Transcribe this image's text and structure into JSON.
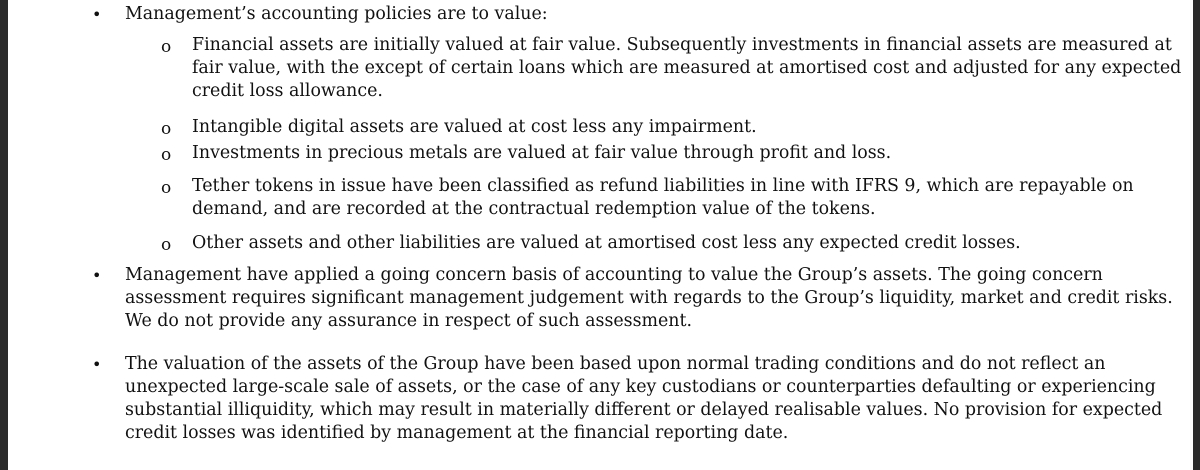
{
  "bullets": [
    {
      "marker": "•",
      "lines": [
        "Management’s accounting policies are to value:"
      ]
    },
    {
      "marker": "•",
      "lines": [
        "Management have applied a going concern basis of accounting to value the Group’s assets. The going concern",
        "assessment requires significant management judgement with regards to the Group’s liquidity, market and credit risks.",
        "We do not provide any assurance in respect of such assessment."
      ]
    },
    {
      "marker": "•",
      "lines": [
        "The valuation of the assets of the Group have been based upon normal trading conditions and do not reflect an",
        "unexpected large-scale sale of assets, or the case of any key custodians or counterparties defaulting or experiencing",
        "substantial illiquidity, which may result in materially different or delayed realisable values. No provision for expected",
        "credit losses was identified by management at the financial reporting date."
      ]
    }
  ],
  "sub_items": [
    {
      "marker": "o",
      "lines": [
        "Financial assets are initially valued at fair value. Subsequently investments in financial assets are measured at",
        "fair value, with the except of certain loans which are measured at amortised cost and adjusted for any expected",
        "credit loss allowance."
      ]
    },
    {
      "marker": "o",
      "lines": [
        "Intangible digital assets are valued at cost less any impairment."
      ]
    },
    {
      "marker": "o",
      "lines": [
        "Investments in precious metals are valued at fair value through profit and loss."
      ]
    },
    {
      "marker": "o",
      "lines": [
        "Tether tokens in issue have been classified as refund liabilities in line with IFRS 9, which are repayable on",
        "demand, and are recorded at the contractual redemption value of the tokens."
      ]
    },
    {
      "marker": "o",
      "lines": [
        "Other assets and other liabilities are valued at amortised cost less any expected credit losses."
      ]
    }
  ]
}
